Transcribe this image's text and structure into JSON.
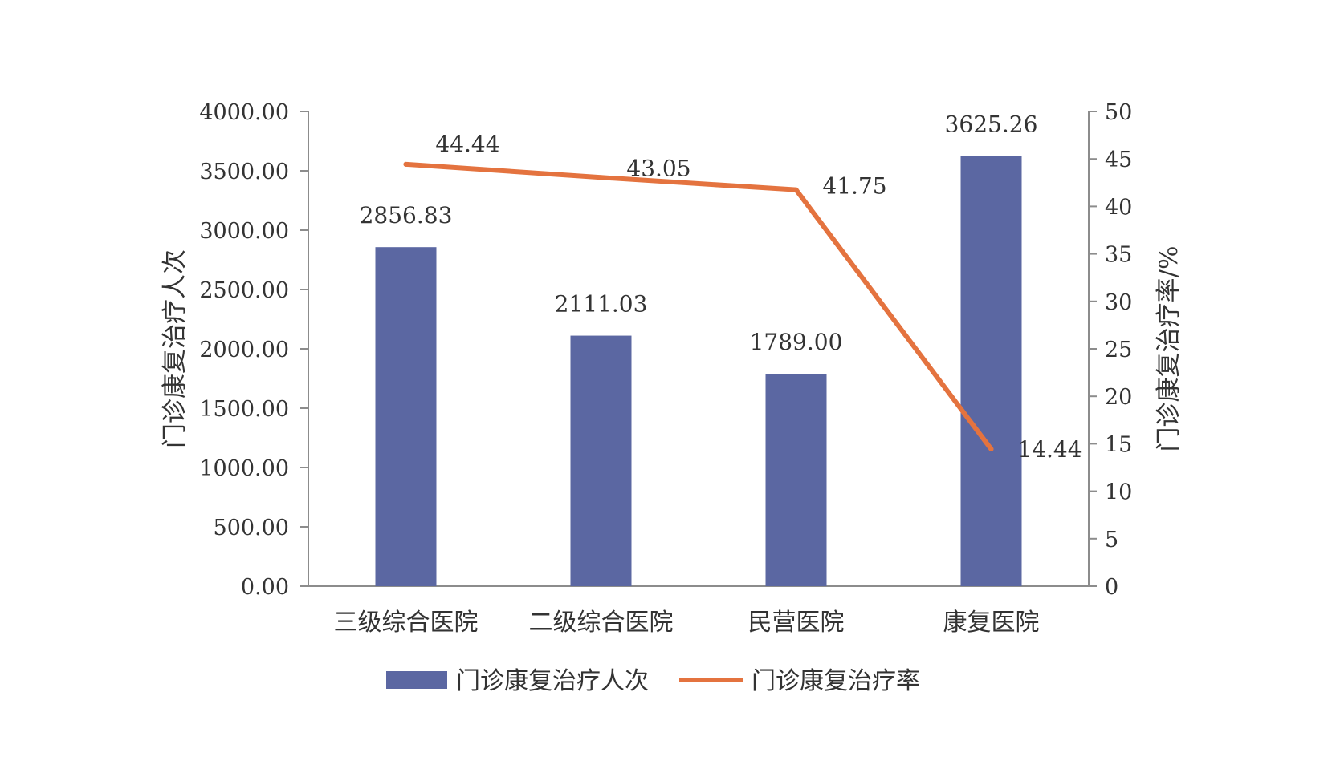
{
  "chart_data": {
    "type": "bar",
    "categories": [
      "三级综合医院",
      "二级综合医院",
      "民营医院",
      "康复医院"
    ],
    "series": [
      {
        "name": "门诊康复治疗人次",
        "type": "bar",
        "axis": "left",
        "values": [
          2856.83,
          2111.03,
          1789.0,
          3625.26
        ],
        "labels": [
          "2856.83",
          "2111.03",
          "1789.00",
          "3625.26"
        ],
        "color": "#5b67a2"
      },
      {
        "name": "门诊康复治疗率",
        "type": "line",
        "axis": "right",
        "values": [
          44.44,
          43.05,
          41.75,
          14.44
        ],
        "labels": [
          "44.44",
          "43.05",
          "41.75",
          "14.44"
        ],
        "color": "#e4733f"
      }
    ],
    "y_left": {
      "label": "门诊康复治疗人次",
      "ylim": [
        0,
        4000
      ],
      "ticks": [
        0,
        500,
        1000,
        1500,
        2000,
        2500,
        3000,
        3500,
        4000
      ],
      "tick_labels": [
        "0.00",
        "500.00",
        "1000.00",
        "1500.00",
        "2000.00",
        "2500.00",
        "3000.00",
        "3500.00",
        "4000.00"
      ]
    },
    "y_right": {
      "label": "门诊康复治疗率/%",
      "ylim": [
        0,
        50
      ],
      "ticks": [
        0,
        5,
        10,
        15,
        20,
        25,
        30,
        35,
        40,
        45,
        50
      ],
      "tick_labels": [
        "0",
        "5",
        "10",
        "15",
        "20",
        "25",
        "30",
        "35",
        "40",
        "45",
        "50"
      ]
    },
    "grid": false,
    "legend_position": "bottom"
  }
}
